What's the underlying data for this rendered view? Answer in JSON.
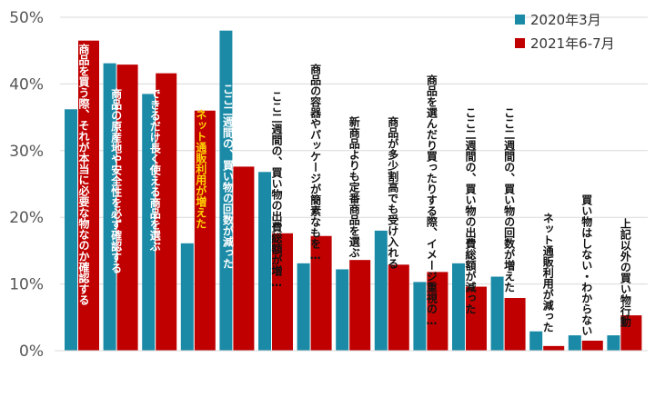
{
  "chart_data": {
    "type": "bar",
    "ylim": [
      0,
      50
    ],
    "yticks": [
      "0%",
      "10%",
      "20%",
      "30%",
      "40%",
      "50%"
    ],
    "grid": true,
    "legend_position": "top-right",
    "colors": {
      "2020": "#1a8aa6",
      "2021": "#c00000",
      "highlight_text": "#ffd400"
    },
    "series": [
      {
        "name": "2020年3月",
        "values": [
          36.2,
          43.1,
          38.5,
          16.1,
          48.0,
          26.8,
          13.1,
          12.2,
          18.0,
          10.3,
          13.1,
          11.1,
          2.9,
          2.3,
          2.3
        ]
      },
      {
        "name": "2021年6-7月",
        "values": [
          46.5,
          42.9,
          41.6,
          36.0,
          27.6,
          17.6,
          17.2,
          13.6,
          12.9,
          11.8,
          9.6,
          7.9,
          0.7,
          1.5,
          5.3
        ]
      }
    ],
    "categories": [
      "商品を買う際、それが本当に必要な物なのか確認する",
      "商品の原産地や安全性を必ず確認する",
      "できるだけ長く使える商品を選ぶ",
      "ネット通販利用が増えた",
      "ここ二週間の、買い物の回数が減った",
      "ここ二週間の、買い物の出費総額が増…",
      "商品の容器やパッケージが簡素なもを…",
      "新商品よりも定番商品を選ぶ",
      "商品が多少割高でも受け入れる",
      "商品を選んだり買ったりする際、イメージ重視の…",
      "ここ二週間の、買い物の出費総額が減った",
      "ここ二週間の、買い物の回数が増えた",
      "ネット通販利用が減った",
      "買い物はしない・わからない",
      "上記以外の買い物行動"
    ]
  }
}
